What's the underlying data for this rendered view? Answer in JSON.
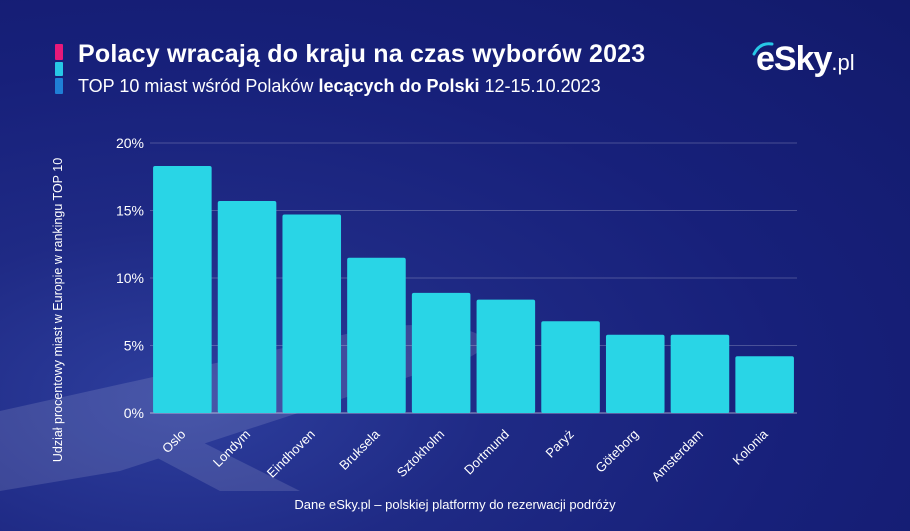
{
  "header": {
    "title": "Polacy wracają do kraju na czas wyborów 2023",
    "subtitle_pre": "TOP 10 miast wśród Polaków ",
    "subtitle_bold": "lecących do Polski",
    "subtitle_post": " 12-15.10.2023"
  },
  "logo": {
    "main": "eSky",
    "suffix": ".pl"
  },
  "footer": {
    "source": "Dane eSky.pl – polskiej platformy do rezerwacji podróży"
  },
  "colors": {
    "bar": "#29d5e6",
    "background": "#1b2480",
    "accent_pink": "#e8197a",
    "accent_cyan": "#27c7e6",
    "accent_blue": "#1f7fd6"
  },
  "chart_data": {
    "type": "bar",
    "title": "Polacy wracają do kraju na czas wyborów 2023",
    "subtitle": "TOP 10 miast wśród Polaków lecących do Polski 12-15.10.2023",
    "xlabel": "",
    "ylabel": "Udział procentowy miast w Europie w rankingu TOP 10",
    "categories": [
      "Oslo",
      "Londym",
      "Eindhoven",
      "Bruksela",
      "Sztokholm",
      "Dortmund",
      "Paryż",
      "Göteborg",
      "Amsterdam",
      "Kolonia"
    ],
    "values": [
      18.3,
      15.7,
      14.7,
      11.5,
      8.9,
      8.4,
      6.8,
      5.8,
      5.8,
      4.2
    ],
    "ylim": [
      0,
      20
    ],
    "yticks": [
      "0%",
      "5%",
      "10%",
      "15%",
      "20%"
    ],
    "grid": true,
    "legend": "none"
  }
}
